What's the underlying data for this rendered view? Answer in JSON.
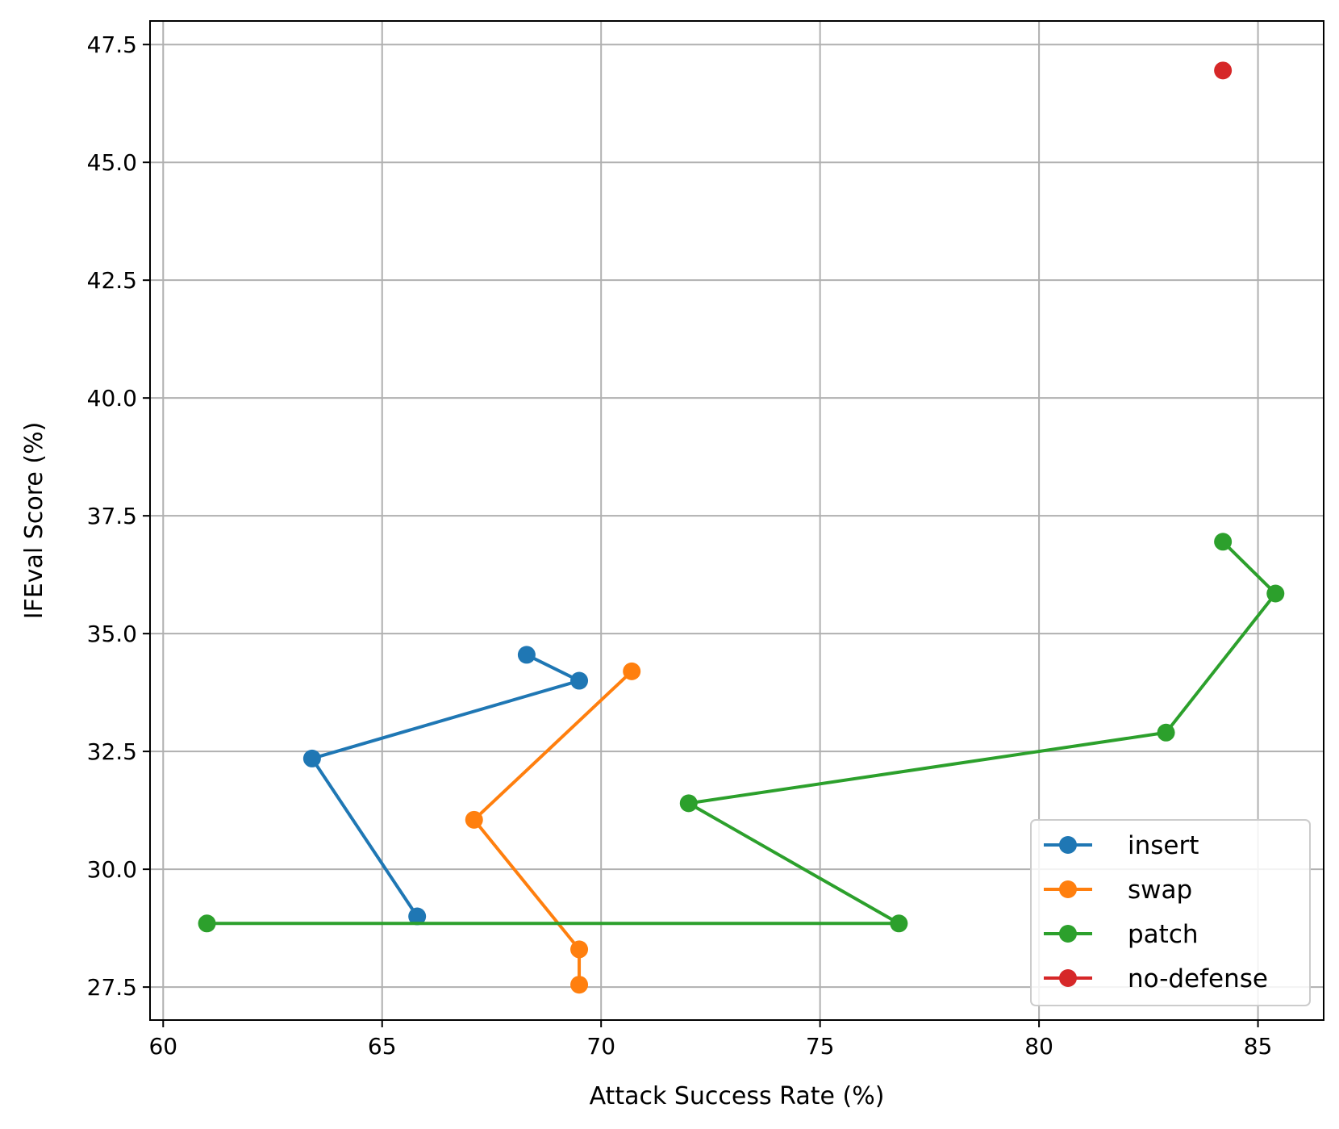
{
  "chart_data": {
    "type": "line",
    "xlabel": "Attack Success Rate (%)",
    "ylabel": "IFEval Score (%)",
    "xlim": [
      59.7,
      86.5
    ],
    "ylim": [
      26.8,
      48.0
    ],
    "xticks": [
      60,
      65,
      70,
      75,
      80,
      85
    ],
    "xtick_labels": [
      "60",
      "65",
      "70",
      "75",
      "80",
      "85"
    ],
    "yticks": [
      27.5,
      30.0,
      32.5,
      35.0,
      37.5,
      40.0,
      42.5,
      45.0,
      47.5
    ],
    "ytick_labels": [
      "27.5",
      "30.0",
      "32.5",
      "35.0",
      "37.5",
      "40.0",
      "42.5",
      "45.0",
      "47.5"
    ],
    "grid": true,
    "legend_position": "lower-right",
    "series": [
      {
        "name": "insert",
        "color": "#1f77b4",
        "x": [
          68.3,
          69.5,
          63.4,
          65.8
        ],
        "y": [
          34.55,
          34.0,
          32.35,
          29.0
        ]
      },
      {
        "name": "swap",
        "color": "#ff7f0e",
        "x": [
          70.7,
          67.1,
          69.5,
          69.5
        ],
        "y": [
          34.2,
          31.05,
          28.3,
          27.55
        ]
      },
      {
        "name": "patch",
        "color": "#2ca02c",
        "x": [
          84.2,
          85.4,
          82.9,
          72.0,
          76.8,
          61.0
        ],
        "y": [
          36.95,
          35.85,
          32.9,
          31.4,
          28.85,
          28.85
        ]
      },
      {
        "name": "no-defense",
        "color": "#d62728",
        "x": [
          84.2
        ],
        "y": [
          46.95
        ]
      }
    ]
  }
}
